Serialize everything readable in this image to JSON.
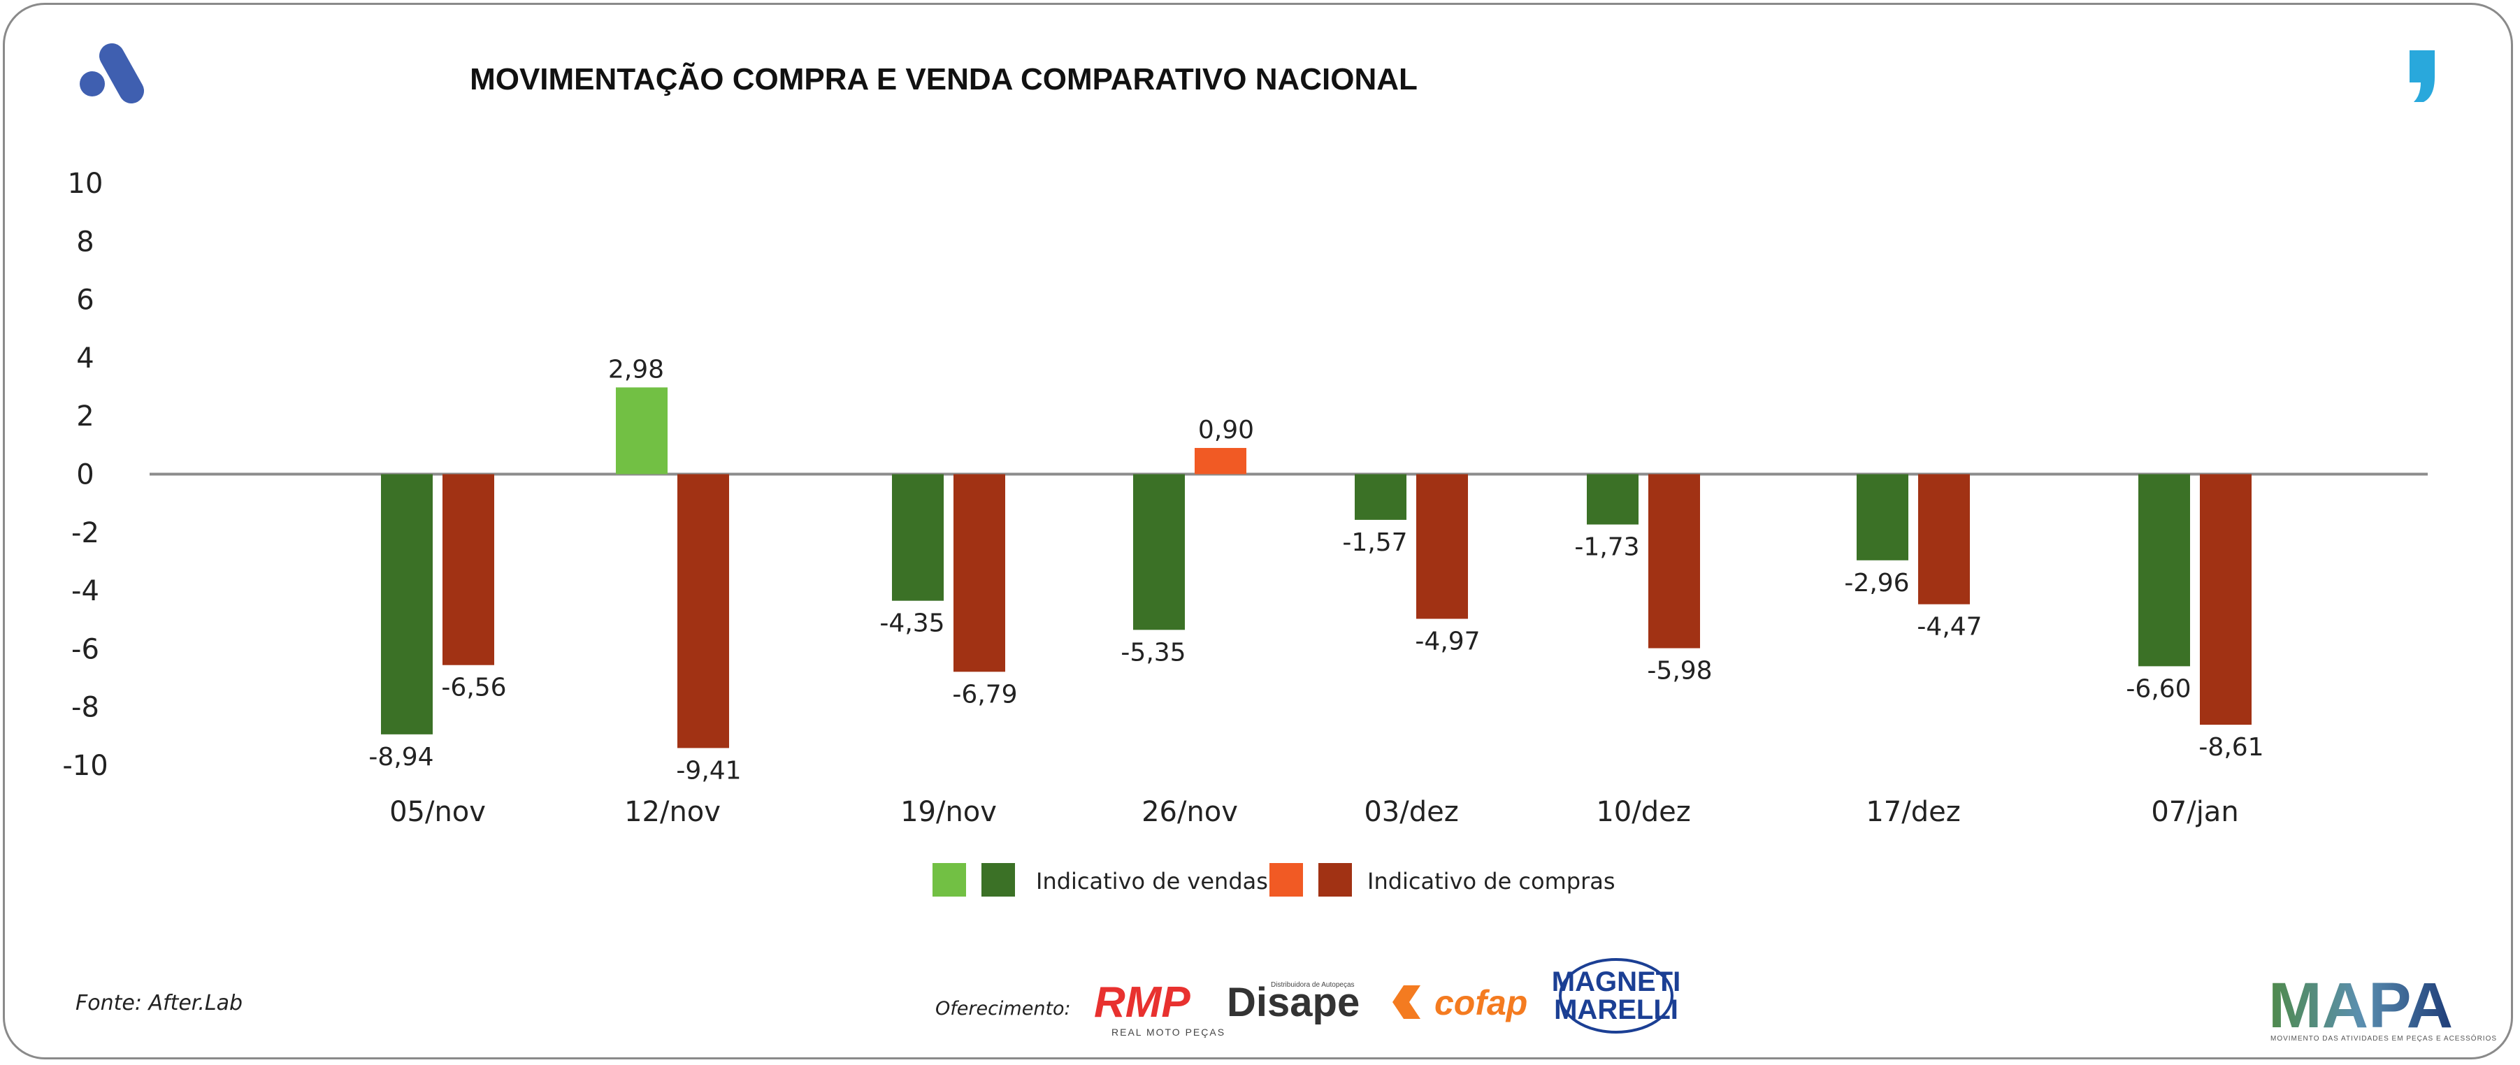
{
  "chart_data": {
    "type": "bar",
    "title": "MOVIMENTAÇÃO COMPRA E VENDA COMPARATIVO NACIONAL",
    "categories": [
      "05/nov",
      "12/nov",
      "19/nov",
      "26/nov",
      "03/dez",
      "10/dez",
      "17/dez",
      "07/jan"
    ],
    "series": [
      {
        "name": "Indicativo de vendas",
        "values": [
          -8.94,
          2.98,
          -4.35,
          -5.35,
          -1.57,
          -1.73,
          -2.96,
          -6.6
        ],
        "labels": [
          "-8,94",
          "2,98",
          "-4,35",
          "-5,35",
          "-1,57",
          "-1,73",
          "-2,96",
          "-6,60"
        ],
        "color_positive": "#72c044",
        "color_negative": "#3b7126"
      },
      {
        "name": "Indicativo de compras",
        "values": [
          -6.56,
          -9.41,
          -6.79,
          0.9,
          -4.97,
          -5.98,
          -4.47,
          -8.61
        ],
        "labels": [
          "-6,56",
          "-9,41",
          "-6,79",
          "0,90",
          "-4,97",
          "-5,98",
          "-4,47",
          "-8,61"
        ],
        "color_positive": "#f15a24",
        "color_negative": "#a13214"
      }
    ],
    "ylim": [
      -10,
      10
    ],
    "yticks": [
      "10",
      "8",
      "6",
      "4",
      "2",
      "0",
      "-2",
      "-4",
      "-6",
      "-8",
      "-10"
    ],
    "ytick_values": [
      10,
      8,
      6,
      4,
      2,
      0,
      -2,
      -4,
      -6,
      -8,
      -10
    ],
    "grid": false,
    "legend": "bottom"
  },
  "footer": {
    "source": "Fonte: After.Lab",
    "sponsor_label": "Oferecimento:",
    "sponsors": [
      "RMP",
      "REAL MOTO PEÇAS",
      "Disape",
      "Distribuidora de Autopeças",
      "cofap",
      "MAGNETI",
      "MARELLI"
    ],
    "brand": "MAPA",
    "brand_tagline": "MOVIMENTO DAS ATIVIDADES EM PEÇAS E ACESSÓRIOS"
  },
  "colors": {
    "logo_left": "#3f5fb0",
    "logo_right": "#29a8dc",
    "axis": "#8c8c8c"
  }
}
